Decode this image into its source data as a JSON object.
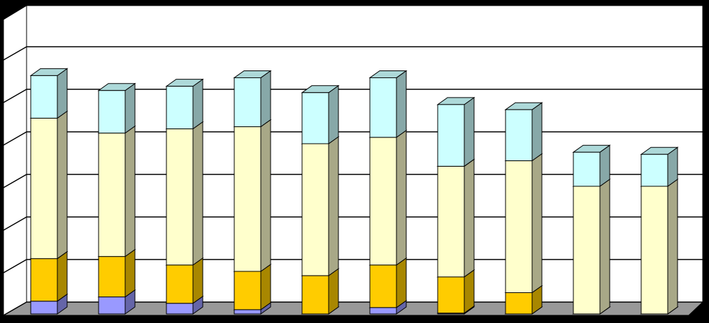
{
  "chart_data": {
    "type": "bar3d_stacked",
    "categories": [
      null,
      null,
      null,
      null,
      null,
      null,
      null,
      null,
      null,
      null
    ],
    "series": [
      {
        "color": "#9999ff",
        "values": [
          0.3,
          0.4,
          0.25,
          0.1,
          0,
          0.15,
          0.02,
          0,
          0,
          0
        ]
      },
      {
        "color": "#ffcc00",
        "values": [
          1.0,
          0.95,
          0.9,
          0.9,
          0.9,
          1.0,
          0.85,
          0.5,
          0,
          0
        ]
      },
      {
        "color": "#ffffcc",
        "values": [
          3.3,
          2.9,
          3.2,
          3.4,
          3.1,
          3.0,
          2.6,
          3.1,
          3.0,
          3.0
        ]
      },
      {
        "color": "#ccffff",
        "values": [
          1.0,
          1.0,
          1.0,
          1.15,
          1.2,
          1.4,
          1.45,
          1.2,
          0.8,
          0.75
        ]
      }
    ],
    "ylim": [
      0,
      7
    ],
    "yticks": [
      0,
      1,
      2,
      3,
      4,
      5,
      6,
      7
    ],
    "grid": true
  }
}
